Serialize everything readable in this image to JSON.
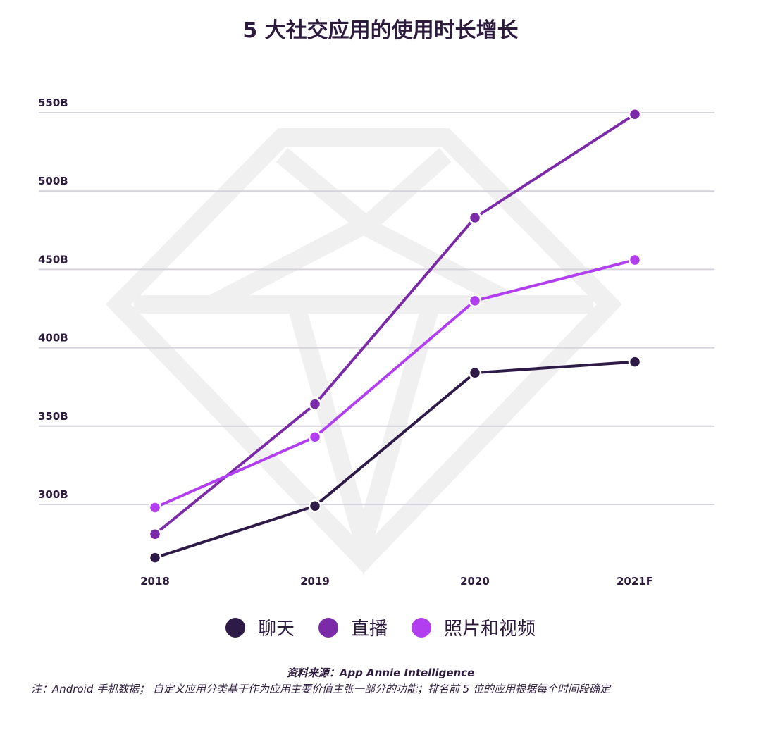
{
  "title": "5 大社交应用的使用时长增长",
  "colors": {
    "chat": "#2e1a47",
    "live": "#7b2aa8",
    "photo": "#b13ff0",
    "grid": "#d6d3dc",
    "watermark": "#f0f0f0"
  },
  "chart_data": {
    "type": "line",
    "title": "5 大社交应用的使用时长增长",
    "categories": [
      "2018",
      "2019",
      "2020",
      "2021F"
    ],
    "y_tick_labels": [
      "300B",
      "350B",
      "400B",
      "450B",
      "500B",
      "550B"
    ],
    "y_ticks": [
      300,
      350,
      400,
      450,
      500,
      550
    ],
    "ylim": [
      255,
      555
    ],
    "grid": true,
    "legend_position": "bottom",
    "series": [
      {
        "name": "聊天",
        "color": "#2e1a47",
        "values": [
          266,
          299,
          384,
          391
        ]
      },
      {
        "name": "直播",
        "color": "#7b2aa8",
        "values": [
          281,
          364,
          483,
          549
        ]
      },
      {
        "name": "照片和视频",
        "color": "#b13ff0",
        "values": [
          298,
          343,
          430,
          456
        ]
      }
    ]
  },
  "legend": [
    {
      "label": "聊天",
      "color": "#2e1a47"
    },
    {
      "label": "直播",
      "color": "#7b2aa8"
    },
    {
      "label": "照片和视频",
      "color": "#b13ff0"
    }
  ],
  "source": "资料来源：App Annie Intelligence",
  "note": "注：Android 手机数据； 自定义应用分类基于作为应用主要价值主张一部分的功能；排名前 5 位的应用根据每个时间段确定"
}
